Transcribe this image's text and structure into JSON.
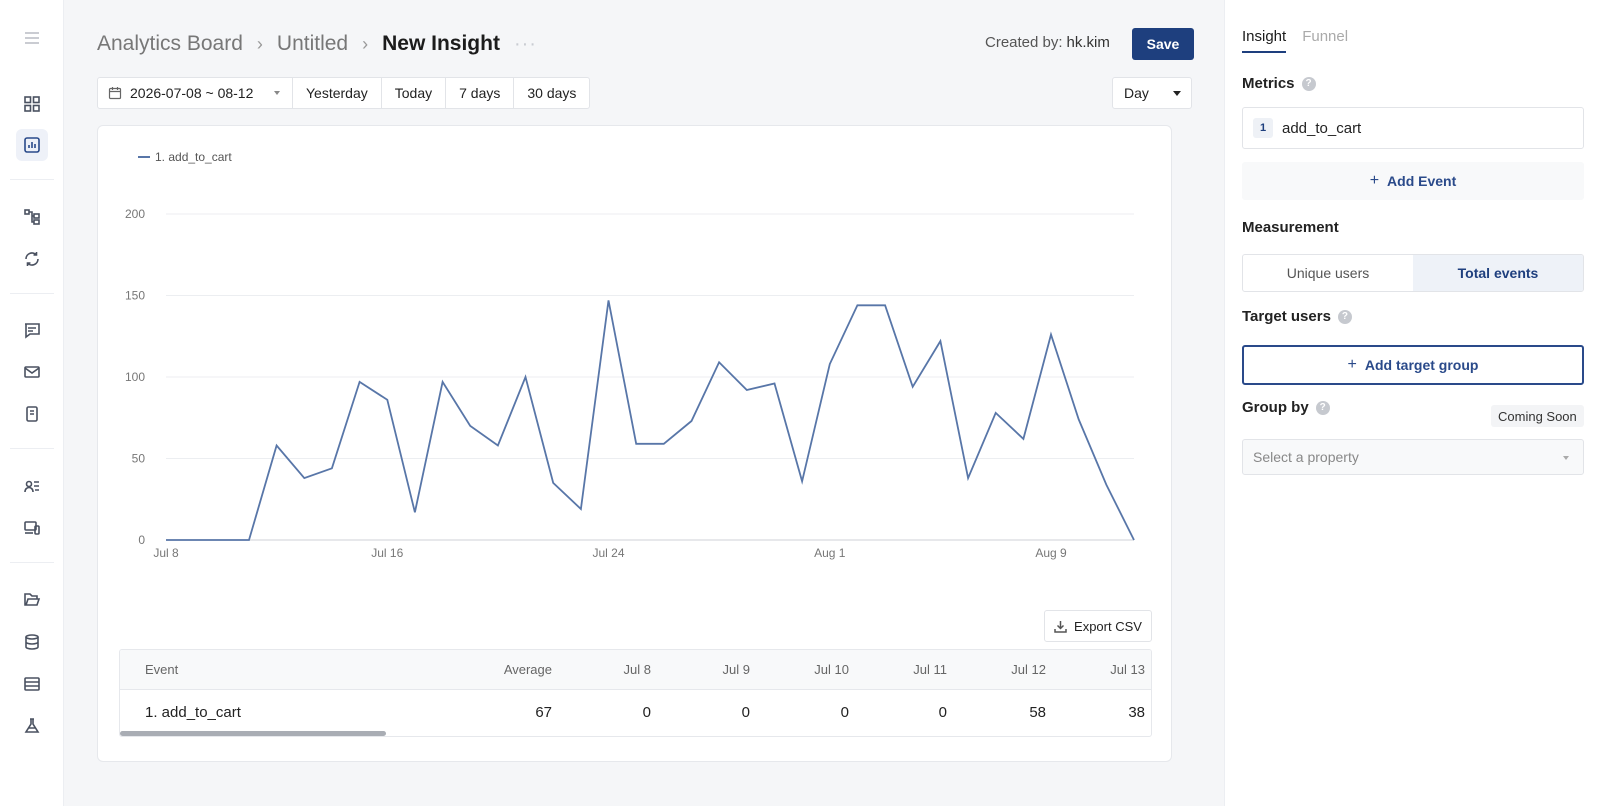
{
  "breadcrumb": {
    "items": [
      "Analytics Board",
      "Untitled"
    ],
    "current": "New Insight",
    "more": "···"
  },
  "header": {
    "created_by_label": "Created by:",
    "created_by_user": "hk.kim",
    "save_label": "Save"
  },
  "date_range": {
    "value": "2026-07-08 ~ 08-12",
    "presets": [
      "Yesterday",
      "Today",
      "7 days",
      "30 days"
    ]
  },
  "interval": {
    "selected": "Day"
  },
  "chart_data": {
    "type": "line",
    "legend": [
      "1. add_to_cart"
    ],
    "x_ticks": [
      "Jul 8",
      "Jul 16",
      "Jul 24",
      "Aug 1",
      "Aug 9"
    ],
    "y_ticks": [
      "0",
      "50",
      "100",
      "150",
      "200"
    ],
    "ylim": [
      0,
      200
    ],
    "x": [
      "Jul 8",
      "Jul 9",
      "Jul 10",
      "Jul 11",
      "Jul 12",
      "Jul 13",
      "Jul 14",
      "Jul 15",
      "Jul 16",
      "Jul 17",
      "Jul 18",
      "Jul 19",
      "Jul 20",
      "Jul 21",
      "Jul 22",
      "Jul 23",
      "Jul 24",
      "Jul 25",
      "Jul 26",
      "Jul 27",
      "Jul 28",
      "Jul 29",
      "Jul 30",
      "Jul 31",
      "Aug 1",
      "Aug 2",
      "Aug 3",
      "Aug 4",
      "Aug 5",
      "Aug 6",
      "Aug 7",
      "Aug 8",
      "Aug 9",
      "Aug 10",
      "Aug 11",
      "Aug 12"
    ],
    "series": [
      {
        "name": "1. add_to_cart",
        "color": "#5876a8",
        "values": [
          0,
          0,
          0,
          0,
          58,
          38,
          44,
          97,
          86,
          17,
          97,
          70,
          58,
          100,
          35,
          19,
          147,
          59,
          59,
          73,
          109,
          92,
          96,
          36,
          108,
          144,
          144,
          94,
          122,
          38,
          78,
          62,
          126,
          74,
          34,
          0
        ]
      }
    ]
  },
  "export_label": "Export CSV",
  "table": {
    "headers": [
      "Event",
      "Average",
      "Jul 8",
      "Jul 9",
      "Jul 10",
      "Jul 11",
      "Jul 12",
      "Jul 13"
    ],
    "rows": [
      [
        "1. add_to_cart",
        "67",
        "0",
        "0",
        "0",
        "0",
        "58",
        "38"
      ]
    ]
  },
  "panel": {
    "tabs": [
      "Insight",
      "Funnel"
    ],
    "metrics_title": "Metrics",
    "metric_num": "1",
    "metric_event": "add_to_cart",
    "add_event_label": "Add Event",
    "measurement_title": "Measurement",
    "measurement_options": [
      "Unique users",
      "Total events"
    ],
    "target_title": "Target users",
    "add_target_label": "Add target group",
    "groupby_title": "Group by",
    "coming_soon": "Coming Soon",
    "property_placeholder": "Select a property"
  }
}
